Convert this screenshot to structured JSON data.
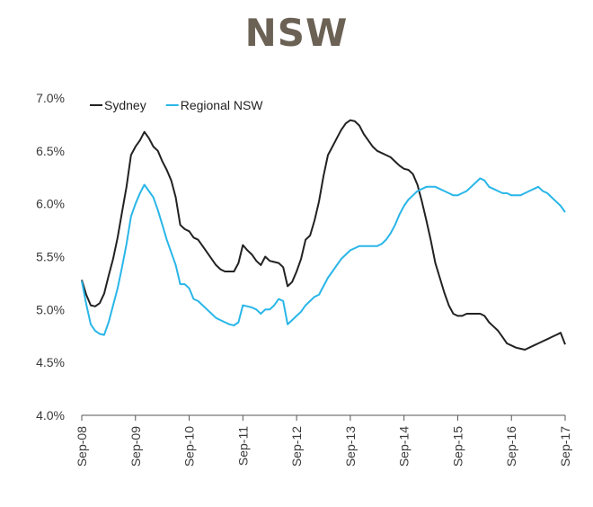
{
  "chart_data": {
    "type": "line",
    "title": "NSW",
    "xlabel": "",
    "ylabel": "",
    "ylim": [
      0.04,
      0.07
    ],
    "y_ticks": [
      "4.0%",
      "4.5%",
      "5.0%",
      "5.5%",
      "6.0%",
      "6.5%",
      "7.0%"
    ],
    "x_ticks": [
      "Sep-08",
      "Sep-09",
      "Sep-10",
      "Sep-11",
      "Sep-12",
      "Sep-13",
      "Sep-14",
      "Sep-15",
      "Sep-16",
      "Sep-17"
    ],
    "x_range": [
      "2008-09",
      "2017-09"
    ],
    "grid": false,
    "legend_position": "top-left",
    "series": [
      {
        "name": "Sydney",
        "color": "#222222",
        "points": [
          [
            "2008-09",
            0.0528
          ],
          [
            "2008-10",
            0.0514
          ],
          [
            "2008-11",
            0.0504
          ],
          [
            "2008-12",
            0.0503
          ],
          [
            "2009-01",
            0.0506
          ],
          [
            "2009-02",
            0.0515
          ],
          [
            "2009-03",
            0.0532
          ],
          [
            "2009-04",
            0.0548
          ],
          [
            "2009-05",
            0.0568
          ],
          [
            "2009-06",
            0.0592
          ],
          [
            "2009-07",
            0.0616
          ],
          [
            "2009-08",
            0.0646
          ],
          [
            "2009-09",
            0.0654
          ],
          [
            "2009-10",
            0.066
          ],
          [
            "2009-11",
            0.0668
          ],
          [
            "2009-12",
            0.0662
          ],
          [
            "2010-01",
            0.0654
          ],
          [
            "2010-02",
            0.065
          ],
          [
            "2010-03",
            0.064
          ],
          [
            "2010-04",
            0.0632
          ],
          [
            "2010-05",
            0.0622
          ],
          [
            "2010-06",
            0.0606
          ],
          [
            "2010-07",
            0.058
          ],
          [
            "2010-08",
            0.0576
          ],
          [
            "2010-09",
            0.0574
          ],
          [
            "2010-10",
            0.0568
          ],
          [
            "2010-11",
            0.0566
          ],
          [
            "2010-12",
            0.056
          ],
          [
            "2011-01",
            0.0554
          ],
          [
            "2011-02",
            0.0548
          ],
          [
            "2011-03",
            0.0542
          ],
          [
            "2011-04",
            0.0538
          ],
          [
            "2011-05",
            0.0536
          ],
          [
            "2011-06",
            0.0536
          ],
          [
            "2011-07",
            0.0536
          ],
          [
            "2011-08",
            0.0544
          ],
          [
            "2011-09",
            0.0561
          ],
          [
            "2011-10",
            0.0556
          ],
          [
            "2011-11",
            0.0552
          ],
          [
            "2011-12",
            0.0546
          ],
          [
            "2012-01",
            0.0542
          ],
          [
            "2012-02",
            0.055
          ],
          [
            "2012-03",
            0.0546
          ],
          [
            "2012-04",
            0.0545
          ],
          [
            "2012-05",
            0.0544
          ],
          [
            "2012-06",
            0.054
          ],
          [
            "2012-07",
            0.0522
          ],
          [
            "2012-08",
            0.0526
          ],
          [
            "2012-09",
            0.0536
          ],
          [
            "2012-10",
            0.0548
          ],
          [
            "2012-11",
            0.0566
          ],
          [
            "2012-12",
            0.057
          ],
          [
            "2013-01",
            0.0584
          ],
          [
            "2013-02",
            0.0602
          ],
          [
            "2013-03",
            0.0626
          ],
          [
            "2013-04",
            0.0646
          ],
          [
            "2013-05",
            0.0654
          ],
          [
            "2013-06",
            0.0662
          ],
          [
            "2013-07",
            0.067
          ],
          [
            "2013-08",
            0.0676
          ],
          [
            "2013-09",
            0.0679
          ],
          [
            "2013-10",
            0.0678
          ],
          [
            "2013-11",
            0.0674
          ],
          [
            "2013-12",
            0.0666
          ],
          [
            "2014-01",
            0.066
          ],
          [
            "2014-02",
            0.0654
          ],
          [
            "2014-03",
            0.065
          ],
          [
            "2014-04",
            0.0648
          ],
          [
            "2014-05",
            0.0646
          ],
          [
            "2014-06",
            0.0644
          ],
          [
            "2014-07",
            0.064
          ],
          [
            "2014-08",
            0.0636
          ],
          [
            "2014-09",
            0.0633
          ],
          [
            "2014-10",
            0.0632
          ],
          [
            "2014-11",
            0.0628
          ],
          [
            "2014-12",
            0.0618
          ],
          [
            "2015-01",
            0.0602
          ],
          [
            "2015-02",
            0.0584
          ],
          [
            "2015-03",
            0.0565
          ],
          [
            "2015-04",
            0.0544
          ],
          [
            "2015-05",
            0.053
          ],
          [
            "2015-06",
            0.0516
          ],
          [
            "2015-07",
            0.0504
          ],
          [
            "2015-08",
            0.0496
          ],
          [
            "2015-09",
            0.0494
          ],
          [
            "2015-10",
            0.0494
          ],
          [
            "2015-11",
            0.0496
          ],
          [
            "2015-12",
            0.0496
          ],
          [
            "2016-01",
            0.0496
          ],
          [
            "2016-02",
            0.0496
          ],
          [
            "2016-03",
            0.0494
          ],
          [
            "2016-04",
            0.0488
          ],
          [
            "2016-05",
            0.0484
          ],
          [
            "2016-06",
            0.048
          ],
          [
            "2016-07",
            0.0474
          ],
          [
            "2016-08",
            0.0468
          ],
          [
            "2016-09",
            0.0466
          ],
          [
            "2016-10",
            0.0464
          ],
          [
            "2016-11",
            0.0463
          ],
          [
            "2016-12",
            0.0462
          ],
          [
            "2017-01",
            0.0464
          ],
          [
            "2017-02",
            0.0466
          ],
          [
            "2017-03",
            0.0468
          ],
          [
            "2017-04",
            0.047
          ],
          [
            "2017-05",
            0.0472
          ],
          [
            "2017-06",
            0.0474
          ],
          [
            "2017-07",
            0.0476
          ],
          [
            "2017-08",
            0.0478
          ],
          [
            "2017-09",
            0.0467
          ]
        ]
      },
      {
        "name": "Regional NSW",
        "color": "#29b6e8",
        "points": [
          [
            "2008-09",
            0.0527
          ],
          [
            "2008-10",
            0.0505
          ],
          [
            "2008-11",
            0.0486
          ],
          [
            "2008-12",
            0.048
          ],
          [
            "2009-01",
            0.0477
          ],
          [
            "2009-02",
            0.0476
          ],
          [
            "2009-03",
            0.0488
          ],
          [
            "2009-04",
            0.0504
          ],
          [
            "2009-05",
            0.052
          ],
          [
            "2009-06",
            0.054
          ],
          [
            "2009-07",
            0.0562
          ],
          [
            "2009-08",
            0.0588
          ],
          [
            "2009-09",
            0.06
          ],
          [
            "2009-10",
            0.061
          ],
          [
            "2009-11",
            0.0618
          ],
          [
            "2009-12",
            0.0612
          ],
          [
            "2010-01",
            0.0606
          ],
          [
            "2010-02",
            0.0594
          ],
          [
            "2010-03",
            0.058
          ],
          [
            "2010-04",
            0.0566
          ],
          [
            "2010-05",
            0.0554
          ],
          [
            "2010-06",
            0.0542
          ],
          [
            "2010-07",
            0.0524
          ],
          [
            "2010-08",
            0.0524
          ],
          [
            "2010-09",
            0.052
          ],
          [
            "2010-10",
            0.051
          ],
          [
            "2010-11",
            0.0508
          ],
          [
            "2010-12",
            0.0504
          ],
          [
            "2011-01",
            0.05
          ],
          [
            "2011-02",
            0.0496
          ],
          [
            "2011-03",
            0.0492
          ],
          [
            "2011-04",
            0.049
          ],
          [
            "2011-05",
            0.0488
          ],
          [
            "2011-06",
            0.0486
          ],
          [
            "2011-07",
            0.0485
          ],
          [
            "2011-08",
            0.0488
          ],
          [
            "2011-09",
            0.0504
          ],
          [
            "2011-10",
            0.0503
          ],
          [
            "2011-11",
            0.0502
          ],
          [
            "2011-12",
            0.05
          ],
          [
            "2012-01",
            0.0496
          ],
          [
            "2012-02",
            0.05
          ],
          [
            "2012-03",
            0.05
          ],
          [
            "2012-04",
            0.0504
          ],
          [
            "2012-05",
            0.051
          ],
          [
            "2012-06",
            0.0508
          ],
          [
            "2012-07",
            0.0486
          ],
          [
            "2012-08",
            0.049
          ],
          [
            "2012-09",
            0.0494
          ],
          [
            "2012-10",
            0.0498
          ],
          [
            "2012-11",
            0.0504
          ],
          [
            "2012-12",
            0.0508
          ],
          [
            "2013-01",
            0.0512
          ],
          [
            "2013-02",
            0.0514
          ],
          [
            "2013-03",
            0.0522
          ],
          [
            "2013-04",
            0.053
          ],
          [
            "2013-05",
            0.0536
          ],
          [
            "2013-06",
            0.0542
          ],
          [
            "2013-07",
            0.0548
          ],
          [
            "2013-08",
            0.0552
          ],
          [
            "2013-09",
            0.0556
          ],
          [
            "2013-10",
            0.0558
          ],
          [
            "2013-11",
            0.056
          ],
          [
            "2013-12",
            0.056
          ],
          [
            "2014-01",
            0.056
          ],
          [
            "2014-02",
            0.056
          ],
          [
            "2014-03",
            0.056
          ],
          [
            "2014-04",
            0.0562
          ],
          [
            "2014-05",
            0.0566
          ],
          [
            "2014-06",
            0.0572
          ],
          [
            "2014-07",
            0.058
          ],
          [
            "2014-08",
            0.059
          ],
          [
            "2014-09",
            0.0598
          ],
          [
            "2014-10",
            0.0604
          ],
          [
            "2014-11",
            0.0608
          ],
          [
            "2014-12",
            0.0612
          ],
          [
            "2015-01",
            0.0614
          ],
          [
            "2015-02",
            0.0616
          ],
          [
            "2015-03",
            0.0616
          ],
          [
            "2015-04",
            0.0616
          ],
          [
            "2015-05",
            0.0614
          ],
          [
            "2015-06",
            0.0612
          ],
          [
            "2015-07",
            0.061
          ],
          [
            "2015-08",
            0.0608
          ],
          [
            "2015-09",
            0.0608
          ],
          [
            "2015-10",
            0.061
          ],
          [
            "2015-11",
            0.0612
          ],
          [
            "2015-12",
            0.0616
          ],
          [
            "2016-01",
            0.062
          ],
          [
            "2016-02",
            0.0624
          ],
          [
            "2016-03",
            0.0622
          ],
          [
            "2016-04",
            0.0616
          ],
          [
            "2016-05",
            0.0614
          ],
          [
            "2016-06",
            0.0612
          ],
          [
            "2016-07",
            0.061
          ],
          [
            "2016-08",
            0.061
          ],
          [
            "2016-09",
            0.0608
          ],
          [
            "2016-10",
            0.0608
          ],
          [
            "2016-11",
            0.0608
          ],
          [
            "2016-12",
            0.061
          ],
          [
            "2017-01",
            0.0612
          ],
          [
            "2017-02",
            0.0614
          ],
          [
            "2017-03",
            0.0616
          ],
          [
            "2017-04",
            0.0612
          ],
          [
            "2017-05",
            0.061
          ],
          [
            "2017-06",
            0.0606
          ],
          [
            "2017-07",
            0.0602
          ],
          [
            "2017-08",
            0.0598
          ],
          [
            "2017-09",
            0.0592
          ]
        ]
      }
    ]
  }
}
